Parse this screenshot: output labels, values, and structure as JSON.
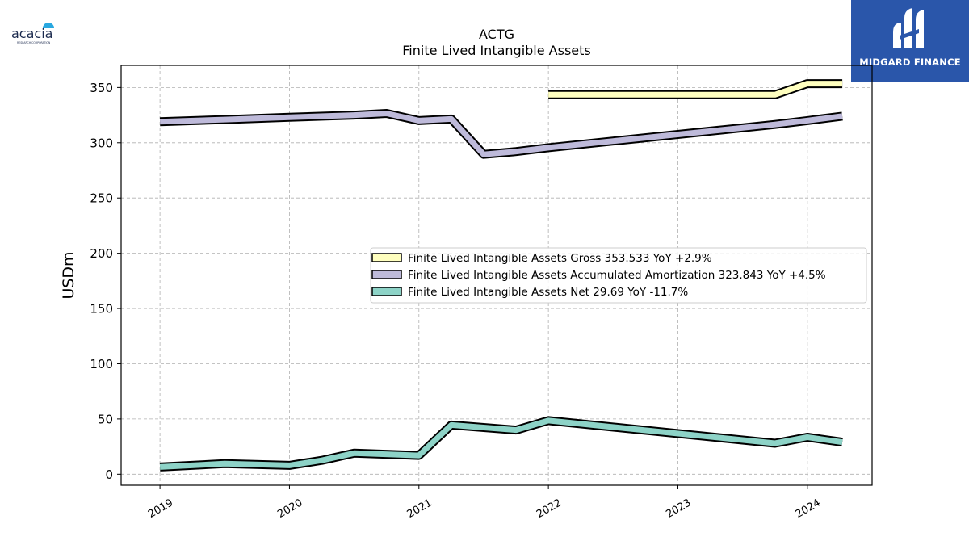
{
  "logos": {
    "left_text": "acacia",
    "left_subtext": "RESEARCH CORPORATION",
    "right_text": "MIDGARD FINANCE"
  },
  "colors": {
    "gross": "#ffffbf",
    "amortization": "#bebada",
    "net": "#8dd3c7",
    "outline": "#000000",
    "brand_blue": "#2a56aa"
  },
  "chart_data": {
    "type": "line",
    "title": "ACTG",
    "subtitle": "Finite Lived Intangible Assets",
    "xlabel": "",
    "ylabel": "USDm",
    "xlim": [
      2018.7,
      2024.5
    ],
    "ylim": [
      -10,
      370
    ],
    "yticks": [
      0,
      50,
      100,
      150,
      200,
      250,
      300,
      350
    ],
    "xticks": [
      {
        "value": 2019,
        "label": "2019"
      },
      {
        "value": 2020,
        "label": "2020"
      },
      {
        "value": 2021,
        "label": "2021"
      },
      {
        "value": 2022,
        "label": "2022"
      },
      {
        "value": 2023,
        "label": "2023"
      },
      {
        "value": 2024,
        "label": "2024"
      }
    ],
    "grid": true,
    "legend_position": "center-right",
    "series": [
      {
        "name": "Finite Lived Intangible Assets Gross  353.533 YoY +2.9%",
        "color_key": "gross",
        "x": [
          2022.0,
          2022.5,
          2023.0,
          2023.5,
          2023.75,
          2024.0,
          2024.27
        ],
        "y": [
          343.5,
          343.5,
          343.5,
          343.5,
          343.5,
          353.5,
          353.5
        ]
      },
      {
        "name": "Finite Lived Intangible Assets Accumulated Amortization  323.843 YoY +4.5%",
        "color_key": "amortization",
        "x": [
          2019.0,
          2019.5,
          2020.0,
          2020.5,
          2020.75,
          2021.0,
          2021.25,
          2021.5,
          2021.75,
          2022.0,
          2022.5,
          2023.0,
          2023.5,
          2023.75,
          2024.0,
          2024.27
        ],
        "y": [
          319,
          321,
          323,
          325,
          326.5,
          320,
          321.5,
          289.5,
          292,
          295.5,
          301.5,
          307.5,
          313.5,
          316.5,
          320,
          324
        ]
      },
      {
        "name": "Finite Lived Intangible Assets Net  29.69 YoY -11.7%",
        "color_key": "net",
        "x": [
          2019.0,
          2019.5,
          2020.0,
          2020.25,
          2020.5,
          2021.0,
          2021.25,
          2021.75,
          2022.0,
          2023.75,
          2024.0,
          2024.27
        ],
        "y": [
          6.5,
          9.5,
          8,
          12.5,
          19,
          17,
          44.5,
          40,
          48.5,
          28,
          33.5,
          29
        ]
      }
    ]
  }
}
